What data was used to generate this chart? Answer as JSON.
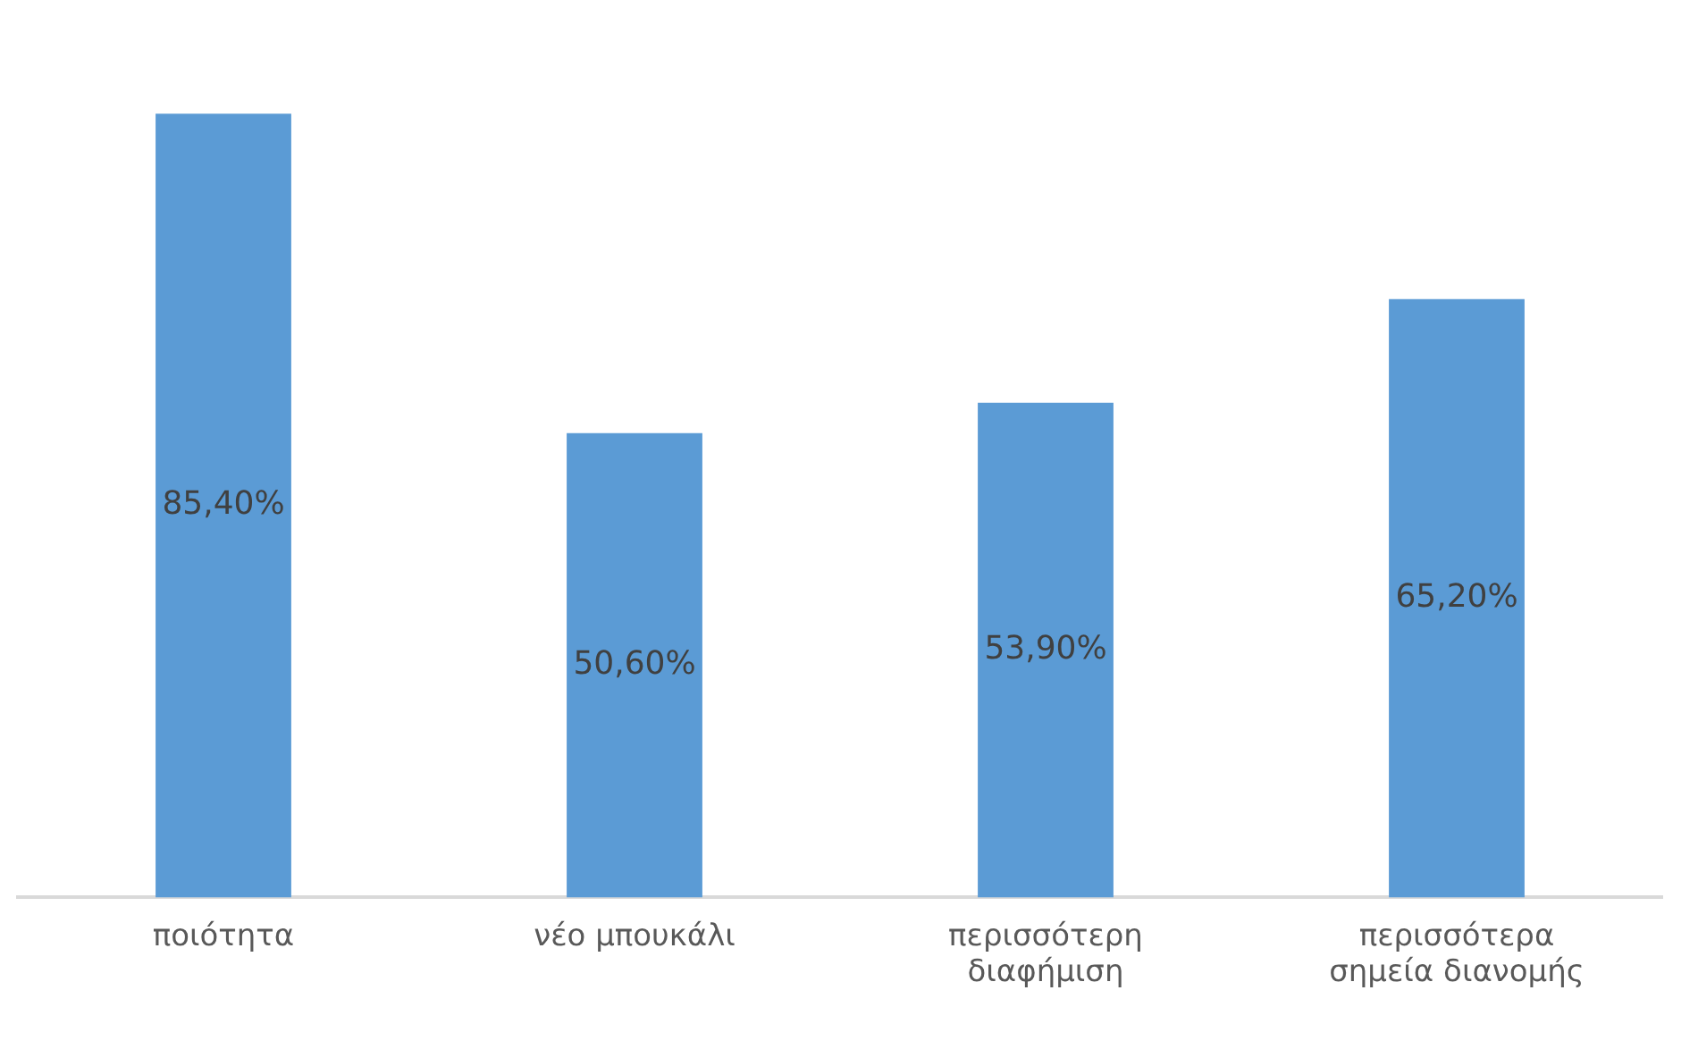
{
  "chart_data": {
    "type": "bar",
    "categories": [
      "ποιότητα",
      "νέο μπουκάλι",
      "περισσότερη διαφήμιση",
      "περισσότερα σημεία διανομής"
    ],
    "values": [
      85.4,
      50.6,
      53.9,
      65.2
    ],
    "value_labels": [
      "85,40%",
      "50,60%",
      "53,90%",
      "65,20%"
    ],
    "color": "#5b9bd5",
    "grid": false,
    "legend": false,
    "tick_labels": "x"
  }
}
